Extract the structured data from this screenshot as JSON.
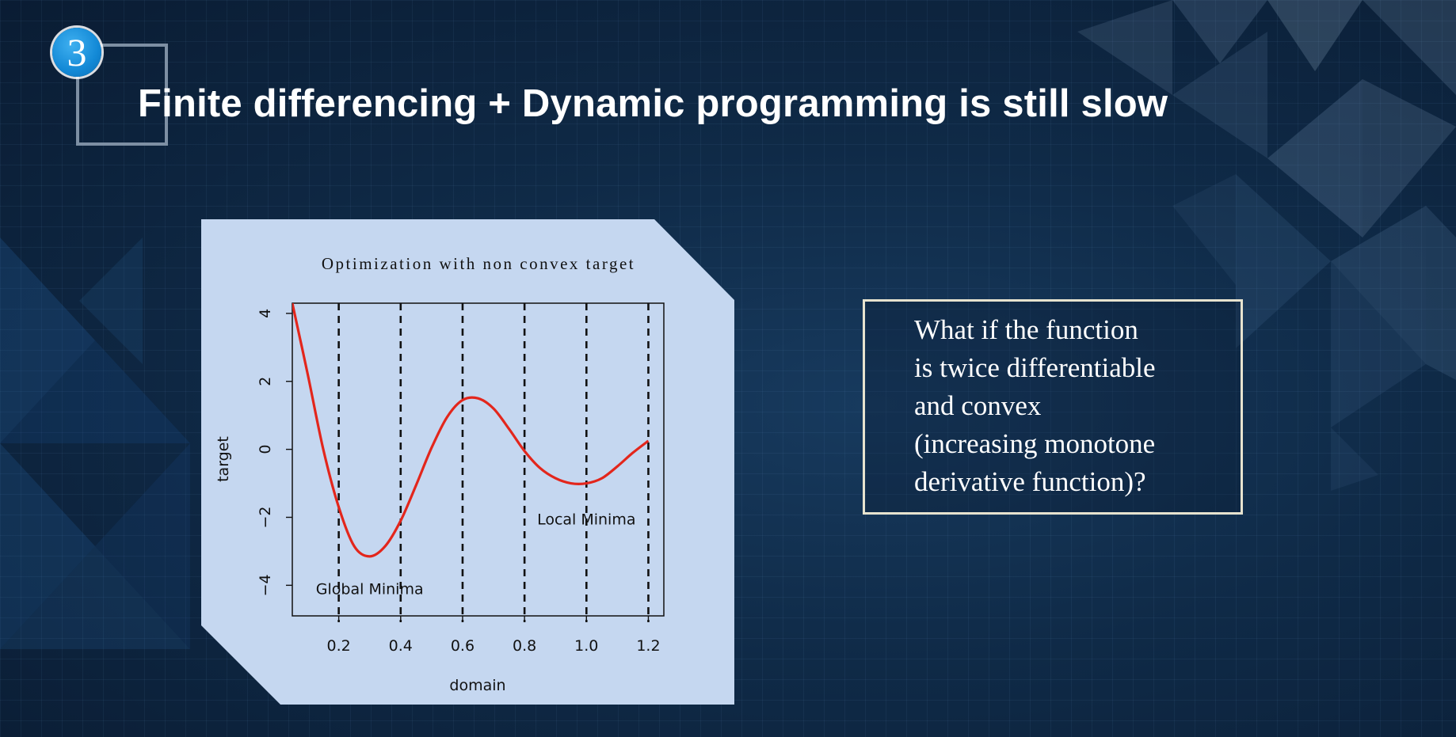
{
  "slide": {
    "number": "3",
    "title": "Finite differencing + Dynamic programming is still slow",
    "callout_lines": [
      "What if the function",
      "is twice differentiable",
      "and convex",
      "(increasing monotone",
      "derivative function)?"
    ]
  },
  "colors": {
    "background": "#0f2a47",
    "panel": "#c5d7f0",
    "curve": "#e3261c",
    "badge": "#1389d6"
  },
  "chart_data": {
    "type": "line",
    "title": "Optimization with non convex target",
    "xlabel": "domain",
    "ylabel": "target",
    "xlim": [
      0.05,
      1.25
    ],
    "ylim": [
      -4.9,
      4.3
    ],
    "xticks": [
      "0.2",
      "0.4",
      "0.6",
      "0.8",
      "1.0",
      "1.2"
    ],
    "yticks": [
      "-4",
      "-2",
      "0",
      "2",
      "4"
    ],
    "vlines_x": [
      0.2,
      0.4,
      0.6,
      0.8,
      1.0,
      1.2
    ],
    "series": [
      {
        "x": [
          0.05,
          0.1,
          0.15,
          0.2,
          0.25,
          0.3,
          0.35,
          0.4,
          0.45,
          0.5,
          0.55,
          0.6,
          0.65,
          0.7,
          0.75,
          0.8,
          0.85,
          0.9,
          0.95,
          1.0,
          1.05,
          1.1,
          1.15,
          1.2
        ],
        "y": [
          4.3,
          2.2,
          0.0,
          -1.7,
          -2.85,
          -3.15,
          -2.85,
          -2.1,
          -1.05,
          0.05,
          0.95,
          1.45,
          1.5,
          1.2,
          0.6,
          -0.05,
          -0.55,
          -0.85,
          -1.0,
          -1.0,
          -0.85,
          -0.5,
          -0.1,
          0.25
        ]
      }
    ],
    "annotations": [
      {
        "text": "Global Minima",
        "x": 0.3,
        "y": -4.1
      },
      {
        "text": "Local Minima",
        "x": 1.0,
        "y": -2.05
      }
    ]
  }
}
